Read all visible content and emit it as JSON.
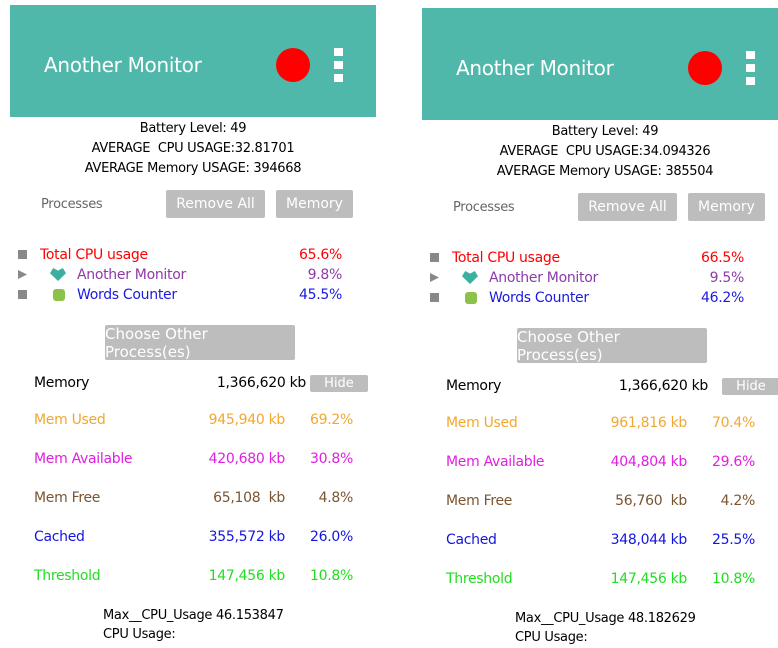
{
  "screens": [
    {
      "header": {
        "title": "Another Monitor"
      },
      "stats": [
        "Battery Level: 49",
        "AVERAGE  CPU USAGE:32.81701",
        "AVERAGE Memory USAGE: 394668"
      ],
      "processes": {
        "label": "Processes",
        "buttons": [
          "Remove All",
          "Memory"
        ],
        "rows": [
          {
            "name": "Total CPU usage",
            "value": "65.6%"
          },
          {
            "name": "Another Monitor",
            "value": "9.8%"
          },
          {
            "name": "Words Counter",
            "value": "45.5%"
          }
        ]
      },
      "choose_button": "Choose Other Process(es)",
      "memory": {
        "label": "Memory",
        "total": "1,366,620 kb",
        "hide": "Hide",
        "rows": [
          {
            "name": "Mem Used",
            "kb": "945,940 kb",
            "percent": "69.2%"
          },
          {
            "name": "Mem Available",
            "kb": "420,680 kb",
            "percent": "30.8%"
          },
          {
            "name": "Mem Free",
            "kb": "65,108  kb",
            "percent": "4.8%"
          },
          {
            "name": "Cached",
            "kb": "355,572 kb",
            "percent": "26.0%"
          },
          {
            "name": "Threshold",
            "kb": "147,456 kb",
            "percent": "10.8%"
          }
        ]
      },
      "footer": [
        "Max__CPU_Usage 46.153847",
        "CPU Usage:"
      ]
    },
    {
      "header": {
        "title": "Another Monitor"
      },
      "stats": [
        "Battery Level: 49",
        "AVERAGE  CPU USAGE:34.094326",
        "AVERAGE Memory USAGE: 385504"
      ],
      "processes": {
        "label": "Processes",
        "buttons": [
          "Remove All",
          "Memory"
        ],
        "rows": [
          {
            "name": "Total CPU usage",
            "value": "66.5%"
          },
          {
            "name": "Another Monitor",
            "value": "9.5%"
          },
          {
            "name": "Words Counter",
            "value": "46.2%"
          }
        ]
      },
      "choose_button": "Choose Other Process(es)",
      "memory": {
        "label": "Memory",
        "total": "1,366,620 kb",
        "hide": "Hide",
        "rows": [
          {
            "name": "Mem Used",
            "kb": "961,816 kb",
            "percent": "70.4%"
          },
          {
            "name": "Mem Available",
            "kb": "404,804 kb",
            "percent": "29.6%"
          },
          {
            "name": "Mem Free",
            "kb": "56,760  kb",
            "percent": "4.2%"
          },
          {
            "name": "Cached",
            "kb": "348,044 kb",
            "percent": "25.5%"
          },
          {
            "name": "Threshold",
            "kb": "147,456 kb",
            "percent": "10.8%"
          }
        ]
      },
      "footer": [
        "Max__CPU_Usage 48.182629",
        "CPU Usage:"
      ]
    }
  ]
}
